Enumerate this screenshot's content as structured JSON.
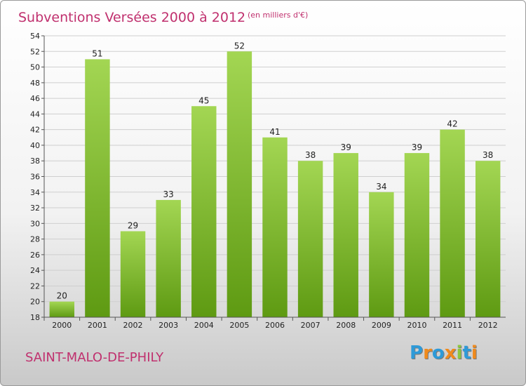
{
  "header": {
    "title": "Subventions Versées 2000 à 2012",
    "unit": "(en milliers d'€)"
  },
  "commune": "SAINT-MALO-DE-PHILY",
  "logo": {
    "text": "Proxiti",
    "letters": [
      {
        "ch": "P",
        "color": "#2e9ad8"
      },
      {
        "ch": "r",
        "color": "#f08a1c"
      },
      {
        "ch": "o",
        "color": "#2e9ad8"
      },
      {
        "ch": "x",
        "color": "#f08a1c"
      },
      {
        "ch": "i",
        "color": "#8cc63f"
      },
      {
        "ch": "t",
        "color": "#2e9ad8"
      },
      {
        "ch": "i",
        "color": "#f08a1c"
      }
    ]
  },
  "colors": {
    "bar_light": "#a3d653",
    "bar_dark": "#5e9a12",
    "grid": "#cfcfcf",
    "axis": "#555555"
  },
  "chart_data": {
    "type": "bar",
    "title": "Subventions Versées 2000 à 2012",
    "subtitle": "(en milliers d'€)",
    "xlabel": "",
    "ylabel": "",
    "categories": [
      "2000",
      "2001",
      "2002",
      "2003",
      "2004",
      "2005",
      "2006",
      "2007",
      "2008",
      "2009",
      "2010",
      "2011",
      "2012"
    ],
    "values": [
      20,
      51,
      29,
      33,
      45,
      52,
      41,
      38,
      39,
      34,
      39,
      42,
      38
    ],
    "ylim": [
      18,
      54
    ],
    "yticks": [
      18,
      20,
      22,
      24,
      26,
      28,
      30,
      32,
      34,
      36,
      38,
      40,
      42,
      44,
      46,
      48,
      50,
      52,
      54
    ],
    "grid": true,
    "data_labels": true
  }
}
